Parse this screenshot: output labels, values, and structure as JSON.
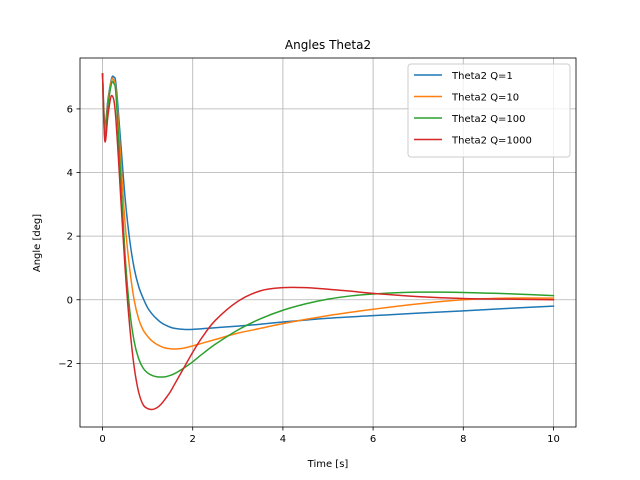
{
  "chart_data": {
    "type": "line",
    "title": "Angles Theta2",
    "xlabel": "Time [s]",
    "ylabel": "Angle [deg]",
    "xlim": [
      -0.5,
      10.5
    ],
    "ylim": [
      -4.0,
      7.6
    ],
    "xticks": [
      0,
      2,
      4,
      6,
      8,
      10
    ],
    "yticks": [
      -2,
      0,
      2,
      4,
      6
    ],
    "tick_labels_x": [
      "0",
      "2",
      "4",
      "6",
      "8",
      "10"
    ],
    "tick_labels_y": [
      "−2",
      "0",
      "2",
      "4",
      "6"
    ],
    "grid": true,
    "legend_position": "top-right",
    "series": [
      {
        "name": "Theta2 Q=1",
        "color": "#1f77b4",
        "x": [
          0,
          0.05,
          0.12,
          0.2,
          0.25,
          0.3,
          0.4,
          0.5,
          0.6,
          0.7,
          0.8,
          0.9,
          1.0,
          1.1,
          1.2,
          1.3,
          1.4,
          1.5,
          1.6,
          1.8,
          2.0,
          2.3,
          2.6,
          3.0,
          3.5,
          4.0,
          5.0,
          6.0,
          7.0,
          8.0,
          9.0,
          10.0
        ],
        "y": [
          7.1,
          5.5,
          6.3,
          6.95,
          7.0,
          6.75,
          5.0,
          3.2,
          1.9,
          1.0,
          0.42,
          0.05,
          -0.25,
          -0.45,
          -0.6,
          -0.72,
          -0.8,
          -0.86,
          -0.9,
          -0.93,
          -0.93,
          -0.9,
          -0.87,
          -0.83,
          -0.77,
          -0.7,
          -0.58,
          -0.5,
          -0.42,
          -0.35,
          -0.27,
          -0.2
        ]
      },
      {
        "name": "Theta2 Q=10",
        "color": "#ff7f0e",
        "x": [
          0,
          0.05,
          0.12,
          0.2,
          0.25,
          0.3,
          0.4,
          0.5,
          0.6,
          0.7,
          0.8,
          0.9,
          1.0,
          1.1,
          1.2,
          1.3,
          1.4,
          1.5,
          1.6,
          1.7,
          1.8,
          2.0,
          2.2,
          2.5,
          3.0,
          3.5,
          4.0,
          5.0,
          6.0,
          7.0,
          8.0,
          9.0,
          10.0
        ],
        "y": [
          7.1,
          5.3,
          6.2,
          6.9,
          6.9,
          6.55,
          4.5,
          2.4,
          1.0,
          0.0,
          -0.6,
          -0.95,
          -1.15,
          -1.3,
          -1.4,
          -1.47,
          -1.52,
          -1.54,
          -1.55,
          -1.54,
          -1.52,
          -1.45,
          -1.37,
          -1.25,
          -1.05,
          -0.9,
          -0.75,
          -0.5,
          -0.3,
          -0.13,
          0.0,
          0.05,
          0.05
        ]
      },
      {
        "name": "Theta2 Q=100",
        "color": "#2ca02c",
        "x": [
          0,
          0.05,
          0.12,
          0.2,
          0.25,
          0.3,
          0.4,
          0.5,
          0.6,
          0.7,
          0.8,
          0.9,
          1.0,
          1.1,
          1.2,
          1.3,
          1.4,
          1.5,
          1.6,
          1.7,
          1.8,
          2.0,
          2.2,
          2.5,
          3.0,
          3.5,
          4.0,
          4.5,
          5.0,
          5.5,
          6.0,
          6.5,
          7.0,
          7.5,
          8.0,
          8.5,
          9.0,
          9.5,
          10.0
        ],
        "y": [
          7.1,
          5.1,
          6.1,
          6.8,
          6.8,
          6.4,
          3.9,
          1.4,
          -0.3,
          -1.3,
          -1.85,
          -2.15,
          -2.3,
          -2.38,
          -2.42,
          -2.43,
          -2.42,
          -2.38,
          -2.32,
          -2.24,
          -2.15,
          -1.95,
          -1.72,
          -1.4,
          -0.95,
          -0.6,
          -0.33,
          -0.13,
          0.02,
          0.12,
          0.18,
          0.22,
          0.24,
          0.24,
          0.23,
          0.21,
          0.19,
          0.16,
          0.13
        ]
      },
      {
        "name": "Theta2 Q=1000",
        "color": "#d62728",
        "x": [
          0,
          0.05,
          0.12,
          0.18,
          0.22,
          0.26,
          0.3,
          0.35,
          0.4,
          0.5,
          0.6,
          0.7,
          0.8,
          0.9,
          1.0,
          1.1,
          1.2,
          1.3,
          1.4,
          1.5,
          1.6,
          1.8,
          2.0,
          2.2,
          2.5,
          3.0,
          3.5,
          4.0,
          4.5,
          5.0,
          5.5,
          6.0,
          7.0,
          8.0,
          9.0,
          10.0
        ],
        "y": [
          7.1,
          5.0,
          5.8,
          6.35,
          6.4,
          6.2,
          5.6,
          4.5,
          3.3,
          1.0,
          -0.8,
          -2.1,
          -2.9,
          -3.3,
          -3.42,
          -3.45,
          -3.4,
          -3.28,
          -3.1,
          -2.9,
          -2.65,
          -2.15,
          -1.65,
          -1.2,
          -0.65,
          -0.05,
          0.28,
          0.38,
          0.38,
          0.33,
          0.27,
          0.2,
          0.1,
          0.04,
          0.02,
          0.0
        ]
      }
    ]
  }
}
